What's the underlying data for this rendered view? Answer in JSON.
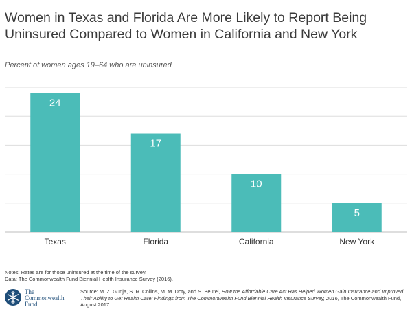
{
  "title": "Women in Texas and Florida Are More Likely to Report Being Uninsured Compared to Women in California and New York",
  "subtitle": "Percent of women ages 19–64 who are uninsured",
  "notes": {
    "line1": "Notes: Rates are for those uninsured at the time of the survey.",
    "line2": "Data: The Commonwealth Fund Biennial Health Insurance Survey (2016)."
  },
  "logo": {
    "line1": "The",
    "line2": "Commonwealth",
    "line3": "Fund",
    "icon": "snowflake-seal-icon",
    "color": "#1f4e79"
  },
  "source": {
    "prefix": "Source: M. Z. Gunja, S. R. Collins, M. M. Doty, and S. Beutel, ",
    "title": "How the Affordable Care Act Has Helped Women Gain Insurance and Improved Their Ability to Get Health Care: Findings from The Commonwealth Fund Biennial Health Insurance Survey, 2016",
    "suffix": ", The Commonwealth Fund, August 2017."
  },
  "chart_data": {
    "type": "bar",
    "categories": [
      "Texas",
      "Florida",
      "California",
      "New York"
    ],
    "values": [
      24,
      17,
      10,
      5
    ],
    "ylim": [
      0,
      25
    ],
    "yticks": [
      0,
      5,
      10,
      15,
      20,
      25
    ],
    "grid": true,
    "bar_color": "#4bbcb8",
    "label_color": "#ffffff"
  }
}
